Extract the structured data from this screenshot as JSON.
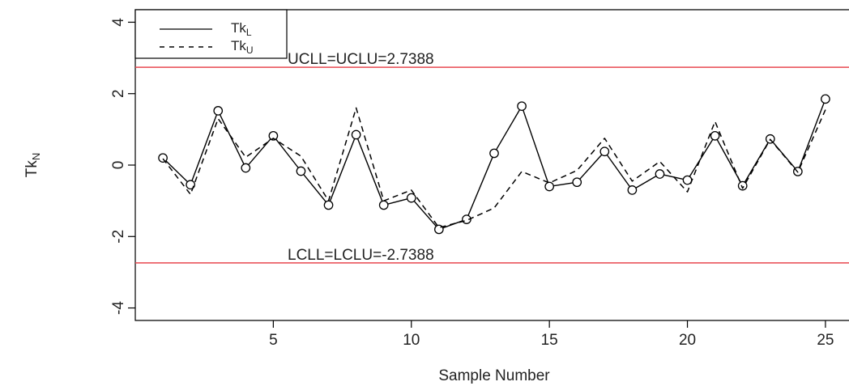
{
  "chart_data": {
    "type": "line",
    "xlabel": "Sample Number",
    "ylabel": {
      "main": "Tk",
      "sub": "N"
    },
    "xlim": [
      0,
      26
    ],
    "ylim": [
      -4.35,
      4.35
    ],
    "xticks": [
      5,
      10,
      15,
      20,
      25
    ],
    "yticks": [
      -4,
      -2,
      0,
      2,
      4
    ],
    "grid": false,
    "legend_position": "top-left",
    "x": [
      1,
      2,
      3,
      4,
      5,
      6,
      7,
      8,
      9,
      10,
      11,
      12,
      13,
      14,
      15,
      16,
      17,
      18,
      19,
      20,
      21,
      22,
      23,
      24,
      25
    ],
    "series": [
      {
        "name": {
          "main": "Tk",
          "sub": "L"
        },
        "style": "solid",
        "markers": "circle",
        "values": [
          0.2,
          -0.55,
          1.52,
          -0.08,
          0.82,
          -0.17,
          -1.12,
          0.85,
          -1.12,
          -0.92,
          -1.8,
          -1.52,
          0.33,
          1.65,
          -0.6,
          -0.48,
          0.38,
          -0.7,
          -0.25,
          -0.42,
          0.82,
          -0.58,
          0.73,
          -0.18,
          1.85
        ]
      },
      {
        "name": {
          "main": "Tk",
          "sub": "U"
        },
        "style": "dashed",
        "markers": "none",
        "values": [
          0.18,
          -0.82,
          1.3,
          0.22,
          0.75,
          0.25,
          -1.0,
          1.6,
          -1.0,
          -0.7,
          -1.75,
          -1.55,
          -1.2,
          -0.18,
          -0.5,
          -0.15,
          0.75,
          -0.45,
          0.1,
          -0.75,
          1.22,
          -0.65,
          0.72,
          -0.2,
          1.55
        ]
      }
    ],
    "control_limits": [
      {
        "label": "UCLL=UCLU=2.7388",
        "value": 2.7388,
        "color": "#e8474f"
      },
      {
        "label": "LCLL=LCLU=-2.7388",
        "value": -2.7388,
        "color": "#e8474f"
      }
    ]
  }
}
